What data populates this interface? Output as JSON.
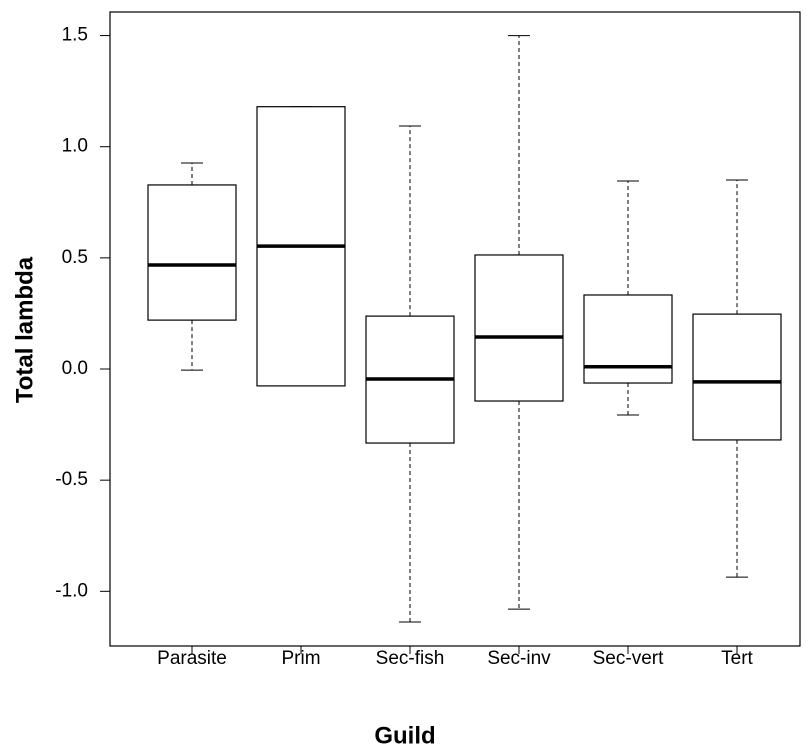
{
  "chart_data": {
    "type": "box",
    "x_label": "Guild",
    "y_label": "Total lambda",
    "categories": [
      "Parasite",
      "Prim",
      "Sec-fish",
      "Sec-inv",
      "Sec-vert",
      "Tert"
    ],
    "boxes": [
      {
        "min": -0.005,
        "q1": 0.22,
        "median": 0.468,
        "q3": 0.828,
        "max": 0.927
      },
      {
        "min": -0.076,
        "q1": -0.076,
        "median": 0.553,
        "q3": 1.18,
        "max": 1.18
      },
      {
        "min": -1.138,
        "q1": -0.333,
        "median": -0.045,
        "q3": 0.238,
        "max": 1.093
      },
      {
        "min": -1.08,
        "q1": -0.144,
        "median": 0.144,
        "q3": 0.513,
        "max": 1.5
      },
      {
        "min": -0.207,
        "q1": -0.063,
        "median": 0.01,
        "q3": 0.333,
        "max": 0.846
      },
      {
        "min": -0.936,
        "q1": -0.319,
        "median": -0.058,
        "q3": 0.247,
        "max": 0.85
      }
    ],
    "ylim": [
      -1.246,
      1.606
    ],
    "yticks": [
      {
        "value": -1,
        "label": "-1.0"
      },
      -0.5,
      {
        "value": 0,
        "label": "0.0"
      },
      0.5,
      {
        "value": 1,
        "label": "1.0"
      },
      1.5
    ],
    "color": "#000000"
  }
}
